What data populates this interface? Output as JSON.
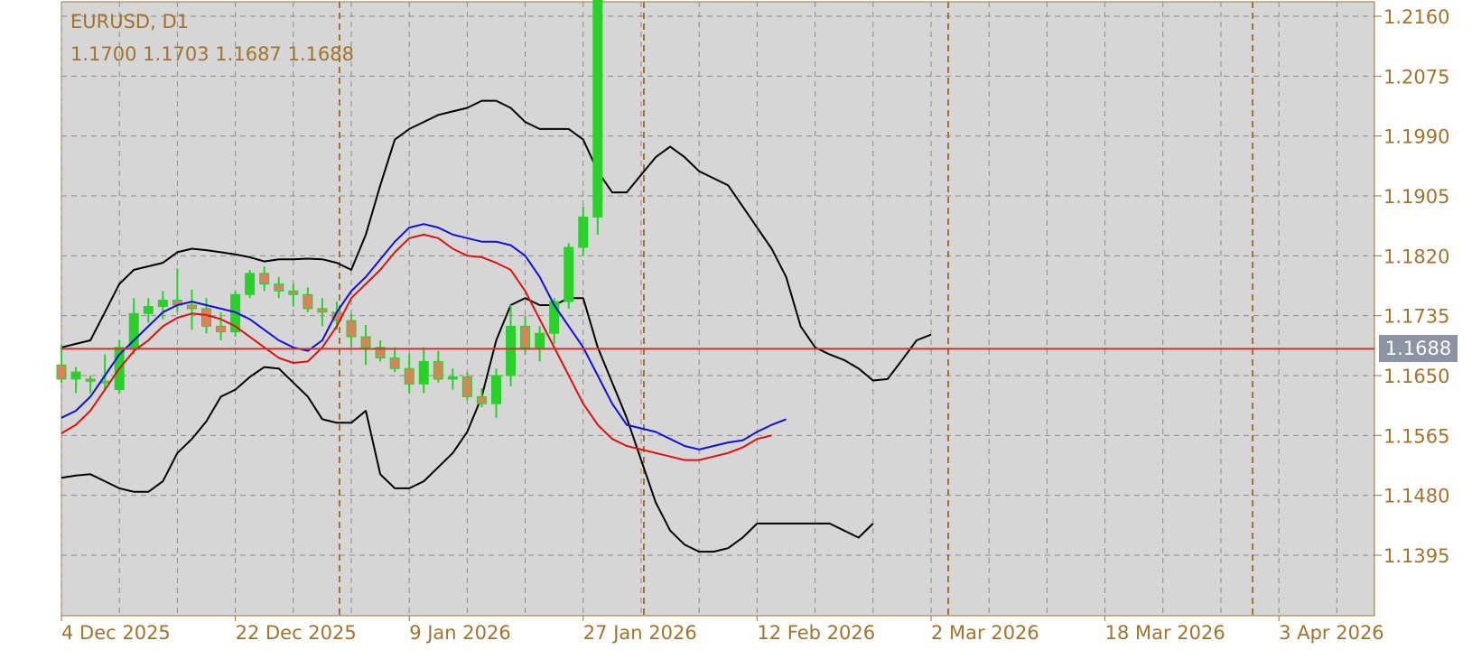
{
  "chart_data": {
    "type": "candlestick",
    "title": "EURUSD, D1",
    "ohlc_readout": "1.1700 1.1703 1.1687 1.1688",
    "current_price_label": "1.1688",
    "current_price": 1.1688,
    "ylim": [
      1.1335,
      1.2185
    ],
    "y_ticks": [
      "1.2160",
      "1.2075",
      "1.1990",
      "1.1905",
      "1.1820",
      "1.1735",
      "1.1650",
      "1.1565",
      "1.1480",
      "1.1395"
    ],
    "x_tick_labels": [
      {
        "label": "4 Dec 2025",
        "index": 0
      },
      {
        "label": "22 Dec 2025",
        "index": 12
      },
      {
        "label": "9 Jan 2026",
        "index": 24
      },
      {
        "label": "27 Jan 2026",
        "index": 36
      },
      {
        "label": "12 Feb 2026",
        "index": 48
      },
      {
        "label": "2 Mar 2026",
        "index": 60
      },
      {
        "label": "18 Mar 2026",
        "index": 72
      },
      {
        "label": "3 Apr 2026",
        "index": 84
      }
    ],
    "period_separators": [
      19,
      40,
      61,
      82
    ],
    "grid": true,
    "colors": {
      "background": "#d6d6d6",
      "grid": "#8a8a8a",
      "axis_text": "#a0742e",
      "separator": "#a0742e",
      "bull_candle": "#2ad12a",
      "bear_candle": "#d8845a",
      "bollinger": "#000000",
      "ma_blue": "#1010d8",
      "ma_red": "#e01010",
      "price_line": "#d03030",
      "price_badge": "#8a94a2"
    },
    "candles": [
      {
        "o": 1.1665,
        "h": 1.1694,
        "l": 1.164,
        "c": 1.1645
      },
      {
        "o": 1.1645,
        "h": 1.1662,
        "l": 1.1625,
        "c": 1.1655
      },
      {
        "o": 1.1645,
        "h": 1.165,
        "l": 1.1625,
        "c": 1.1642
      },
      {
        "o": 1.1642,
        "h": 1.168,
        "l": 1.163,
        "c": 1.164
      },
      {
        "o": 1.163,
        "h": 1.17,
        "l": 1.1625,
        "c": 1.169
      },
      {
        "o": 1.169,
        "h": 1.176,
        "l": 1.168,
        "c": 1.1738
      },
      {
        "o": 1.1738,
        "h": 1.176,
        "l": 1.1725,
        "c": 1.1748
      },
      {
        "o": 1.1748,
        "h": 1.177,
        "l": 1.173,
        "c": 1.1757
      },
      {
        "o": 1.1757,
        "h": 1.1802,
        "l": 1.174,
        "c": 1.175
      },
      {
        "o": 1.175,
        "h": 1.1772,
        "l": 1.1715,
        "c": 1.1745
      },
      {
        "o": 1.1745,
        "h": 1.176,
        "l": 1.171,
        "c": 1.172
      },
      {
        "o": 1.172,
        "h": 1.174,
        "l": 1.17,
        "c": 1.1712
      },
      {
        "o": 1.1712,
        "h": 1.177,
        "l": 1.1705,
        "c": 1.1765
      },
      {
        "o": 1.1765,
        "h": 1.18,
        "l": 1.176,
        "c": 1.1795
      },
      {
        "o": 1.1795,
        "h": 1.1805,
        "l": 1.177,
        "c": 1.178
      },
      {
        "o": 1.178,
        "h": 1.179,
        "l": 1.176,
        "c": 1.177
      },
      {
        "o": 1.177,
        "h": 1.178,
        "l": 1.1748,
        "c": 1.1765
      },
      {
        "o": 1.1765,
        "h": 1.1775,
        "l": 1.174,
        "c": 1.1745
      },
      {
        "o": 1.1745,
        "h": 1.176,
        "l": 1.172,
        "c": 1.174
      },
      {
        "o": 1.174,
        "h": 1.1755,
        "l": 1.1715,
        "c": 1.1728
      },
      {
        "o": 1.1728,
        "h": 1.1738,
        "l": 1.169,
        "c": 1.1705
      },
      {
        "o": 1.1705,
        "h": 1.1722,
        "l": 1.1665,
        "c": 1.169
      },
      {
        "o": 1.169,
        "h": 1.17,
        "l": 1.167,
        "c": 1.1675
      },
      {
        "o": 1.1675,
        "h": 1.169,
        "l": 1.1655,
        "c": 1.166
      },
      {
        "o": 1.166,
        "h": 1.168,
        "l": 1.1625,
        "c": 1.1638
      },
      {
        "o": 1.1638,
        "h": 1.169,
        "l": 1.1625,
        "c": 1.167
      },
      {
        "o": 1.167,
        "h": 1.1685,
        "l": 1.164,
        "c": 1.1645
      },
      {
        "o": 1.1645,
        "h": 1.166,
        "l": 1.163,
        "c": 1.1648
      },
      {
        "o": 1.1648,
        "h": 1.1655,
        "l": 1.1615,
        "c": 1.162
      },
      {
        "o": 1.162,
        "h": 1.1632,
        "l": 1.1605,
        "c": 1.161
      },
      {
        "o": 1.161,
        "h": 1.166,
        "l": 1.159,
        "c": 1.165
      },
      {
        "o": 1.165,
        "h": 1.175,
        "l": 1.1635,
        "c": 1.172
      },
      {
        "o": 1.172,
        "h": 1.1735,
        "l": 1.168,
        "c": 1.169
      },
      {
        "o": 1.169,
        "h": 1.172,
        "l": 1.167,
        "c": 1.171
      },
      {
        "o": 1.171,
        "h": 1.176,
        "l": 1.1695,
        "c": 1.1755
      },
      {
        "o": 1.1755,
        "h": 1.1838,
        "l": 1.1745,
        "c": 1.1832
      },
      {
        "o": 1.1832,
        "h": 1.189,
        "l": 1.182,
        "c": 1.1875
      },
      {
        "o": 1.1875,
        "h": 2.006,
        "l": 1.185,
        "c": 2.003
      }
    ],
    "bollinger_upper": [
      1.169,
      1.1695,
      1.17,
      1.174,
      1.178,
      1.18,
      1.1805,
      1.181,
      1.1825,
      1.183,
      1.1828,
      1.1825,
      1.1822,
      1.1818,
      1.1812,
      1.1815,
      1.1815,
      1.1816,
      1.1815,
      1.181,
      1.18,
      1.185,
      1.192,
      1.1985,
      1.2,
      1.201,
      1.202,
      1.2025,
      1.203,
      1.204,
      1.204,
      1.203,
      1.201,
      1.2,
      1.2,
      1.2,
      1.1985,
      1.194,
      1.191,
      1.191,
      1.1935,
      1.196,
      1.1975,
      1.196,
      1.194,
      1.193,
      1.192,
      1.189,
      1.186,
      1.183,
      1.179,
      1.172,
      1.169,
      1.168,
      1.1672,
      1.166,
      1.1643,
      1.1645,
      1.1672,
      1.17,
      1.1708
    ],
    "bollinger_lower": [
      1.1505,
      1.1508,
      1.151,
      1.15,
      1.149,
      1.1485,
      1.1485,
      1.15,
      1.154,
      1.156,
      1.1585,
      1.162,
      1.163,
      1.1648,
      1.1662,
      1.166,
      1.164,
      1.162,
      1.1588,
      1.1583,
      1.1583,
      1.16,
      1.151,
      1.149,
      1.149,
      1.15,
      1.152,
      1.154,
      1.157,
      1.162,
      1.17,
      1.175,
      1.176,
      1.175,
      1.175,
      1.176,
      1.176,
      1.169,
      1.164,
      1.159,
      1.153,
      1.147,
      1.143,
      1.141,
      1.14,
      1.14,
      1.1405,
      1.142,
      1.144,
      1.144,
      1.144,
      1.144,
      1.144,
      1.144,
      1.143,
      1.142,
      1.144
    ],
    "ma_blue": [
      1.159,
      1.16,
      1.162,
      1.165,
      1.168,
      1.17,
      1.172,
      1.174,
      1.175,
      1.1755,
      1.175,
      1.1745,
      1.174,
      1.173,
      1.1715,
      1.17,
      1.169,
      1.1685,
      1.17,
      1.174,
      1.177,
      1.179,
      1.1815,
      1.184,
      1.186,
      1.1865,
      1.186,
      1.185,
      1.1845,
      1.184,
      1.184,
      1.1835,
      1.182,
      1.179,
      1.175,
      1.172,
      1.169,
      1.165,
      1.161,
      1.158,
      1.1575,
      1.157,
      1.156,
      1.155,
      1.1545,
      1.155,
      1.1555,
      1.1558,
      1.157,
      1.158,
      1.1588
    ],
    "ma_red": [
      1.1568,
      1.158,
      1.16,
      1.163,
      1.166,
      1.1685,
      1.17,
      1.172,
      1.1732,
      1.1738,
      1.1736,
      1.173,
      1.172,
      1.1705,
      1.169,
      1.1675,
      1.1668,
      1.167,
      1.169,
      1.172,
      1.176,
      1.178,
      1.18,
      1.1825,
      1.1845,
      1.185,
      1.1845,
      1.183,
      1.182,
      1.1818,
      1.181,
      1.18,
      1.177,
      1.173,
      1.169,
      1.165,
      1.161,
      1.158,
      1.156,
      1.155,
      1.1545,
      1.154,
      1.1535,
      1.153,
      1.153,
      1.1535,
      1.154,
      1.1548,
      1.156,
      1.1565
    ]
  }
}
